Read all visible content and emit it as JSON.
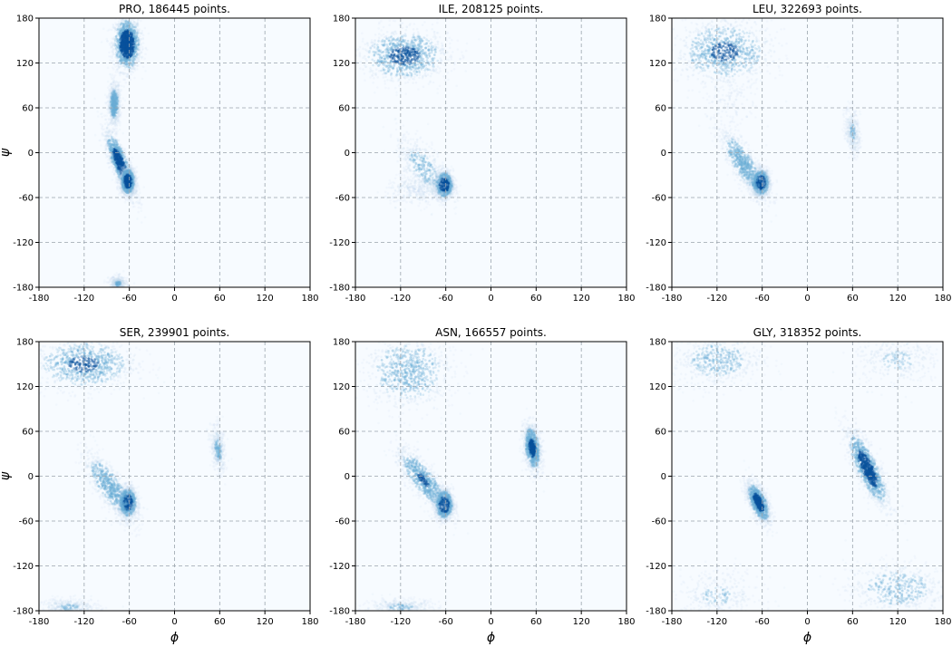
{
  "chart_data": [
    {
      "type": "heatmap",
      "title": "PRO, 186445 points.",
      "xlabel": "",
      "ylabel": "ψ",
      "xlim": [
        -180,
        180
      ],
      "ylim": [
        -180,
        180
      ],
      "xticks": [
        -180,
        -120,
        -60,
        0,
        60,
        120,
        180
      ],
      "yticks": [
        -180,
        -120,
        -60,
        0,
        60,
        120,
        180
      ],
      "grid": true,
      "density_clusters": [
        {
          "phi": -63,
          "psi": 145,
          "sd_phi": 9,
          "sd_psi": 18,
          "tilt": 0,
          "weight": 1.0
        },
        {
          "phi": -72,
          "psi": -15,
          "sd_phi": 10,
          "sd_psi": 22,
          "tilt": 0.8,
          "weight": 0.9
        },
        {
          "phi": -62,
          "psi": -38,
          "sd_phi": 5,
          "sd_psi": 9,
          "tilt": 0,
          "weight": 1.0
        },
        {
          "phi": -80,
          "psi": 65,
          "sd_phi": 4,
          "sd_psi": 14,
          "tilt": 0,
          "weight": 0.5
        },
        {
          "phi": -75,
          "psi": -175,
          "sd_phi": 6,
          "sd_psi": 5,
          "tilt": 0,
          "weight": 0.25
        }
      ]
    },
    {
      "type": "heatmap",
      "title": "ILE, 208125 points.",
      "xlabel": "",
      "ylabel": "",
      "xlim": [
        -180,
        180
      ],
      "ylim": [
        -180,
        180
      ],
      "xticks": [
        -180,
        -120,
        -60,
        0,
        60,
        120,
        180
      ],
      "yticks": [
        -180,
        -120,
        -60,
        0,
        60,
        120,
        180
      ],
      "grid": true,
      "density_clusters": [
        {
          "phi": -115,
          "psi": 130,
          "sd_phi": 30,
          "sd_psi": 18,
          "tilt": 0,
          "weight": 0.7
        },
        {
          "phi": -62,
          "psi": -43,
          "sd_phi": 6,
          "sd_psi": 9,
          "tilt": 0,
          "weight": 1.0
        },
        {
          "phi": -90,
          "psi": -20,
          "sd_phi": 18,
          "sd_psi": 22,
          "tilt": 0.6,
          "weight": 0.35
        },
        {
          "phi": -100,
          "psi": -50,
          "sd_phi": 20,
          "sd_psi": 10,
          "tilt": 0,
          "weight": 0.2
        }
      ]
    },
    {
      "type": "heatmap",
      "title": "LEU, 322693 points.",
      "xlabel": "",
      "ylabel": "",
      "xlim": [
        -180,
        180
      ],
      "ylim": [
        -180,
        180
      ],
      "xticks": [
        -180,
        -120,
        -60,
        0,
        60,
        120,
        180
      ],
      "yticks": [
        -180,
        -120,
        -60,
        0,
        60,
        120,
        180
      ],
      "grid": true,
      "density_clusters": [
        {
          "phi": -110,
          "psi": 135,
          "sd_phi": 32,
          "sd_psi": 22,
          "tilt": 0,
          "weight": 0.65
        },
        {
          "phi": -62,
          "psi": -40,
          "sd_phi": 6,
          "sd_psi": 9,
          "tilt": 0,
          "weight": 1.0
        },
        {
          "phi": -85,
          "psi": -15,
          "sd_phi": 16,
          "sd_psi": 24,
          "tilt": 0.8,
          "weight": 0.55
        },
        {
          "phi": 60,
          "psi": 28,
          "sd_phi": 5,
          "sd_psi": 16,
          "tilt": 0.3,
          "weight": 0.25
        },
        {
          "phi": -100,
          "psi": 70,
          "sd_phi": 20,
          "sd_psi": 20,
          "tilt": 0,
          "weight": 0.1
        }
      ]
    },
    {
      "type": "heatmap",
      "title": "SER, 239901 points.",
      "xlabel": "ϕ",
      "ylabel": "ψ",
      "xlim": [
        -180,
        180
      ],
      "ylim": [
        -180,
        180
      ],
      "xticks": [
        -180,
        -120,
        -60,
        0,
        60,
        120,
        180
      ],
      "yticks": [
        -180,
        -120,
        -60,
        0,
        60,
        120,
        180
      ],
      "grid": true,
      "density_clusters": [
        {
          "phi": -120,
          "psi": 150,
          "sd_phi": 35,
          "sd_psi": 18,
          "tilt": 0,
          "weight": 0.65
        },
        {
          "phi": -62,
          "psi": -35,
          "sd_phi": 6,
          "sd_psi": 10,
          "tilt": 0,
          "weight": 1.0
        },
        {
          "phi": -85,
          "psi": -15,
          "sd_phi": 18,
          "sd_psi": 24,
          "tilt": 0.8,
          "weight": 0.55
        },
        {
          "phi": 58,
          "psi": 35,
          "sd_phi": 5,
          "sd_psi": 16,
          "tilt": 0.3,
          "weight": 0.3
        },
        {
          "phi": -140,
          "psi": -175,
          "sd_phi": 20,
          "sd_psi": 6,
          "tilt": 0,
          "weight": 0.25
        }
      ]
    },
    {
      "type": "heatmap",
      "title": "ASN, 166557 points.",
      "xlabel": "ϕ",
      "ylabel": "",
      "xlim": [
        -180,
        180
      ],
      "ylim": [
        -180,
        180
      ],
      "xticks": [
        -180,
        -120,
        -60,
        0,
        60,
        120,
        180
      ],
      "yticks": [
        -180,
        -120,
        -60,
        0,
        60,
        120,
        180
      ],
      "grid": true,
      "density_clusters": [
        {
          "phi": -110,
          "psi": 140,
          "sd_phi": 30,
          "sd_psi": 25,
          "tilt": 0,
          "weight": 0.55
        },
        {
          "phi": -62,
          "psi": -38,
          "sd_phi": 6,
          "sd_psi": 10,
          "tilt": 0,
          "weight": 1.0
        },
        {
          "phi": -90,
          "psi": -5,
          "sd_phi": 18,
          "sd_psi": 22,
          "tilt": 0.8,
          "weight": 0.6
        },
        {
          "phi": 55,
          "psi": 38,
          "sd_phi": 6,
          "sd_psi": 16,
          "tilt": 0.3,
          "weight": 0.75
        },
        {
          "phi": -120,
          "psi": -175,
          "sd_phi": 25,
          "sd_psi": 6,
          "tilt": 0,
          "weight": 0.25
        }
      ]
    },
    {
      "type": "heatmap",
      "title": "GLY, 318352 points.",
      "xlabel": "ϕ",
      "ylabel": "",
      "xlim": [
        -180,
        180
      ],
      "ylim": [
        -180,
        180
      ],
      "xticks": [
        -180,
        -120,
        -60,
        0,
        60,
        120,
        180
      ],
      "yticks": [
        -180,
        -120,
        -60,
        0,
        60,
        120,
        180
      ],
      "grid": true,
      "density_clusters": [
        {
          "phi": 80,
          "psi": 10,
          "sd_phi": 14,
          "sd_psi": 26,
          "tilt": 0.8,
          "weight": 0.85
        },
        {
          "phi": -65,
          "psi": -35,
          "sd_phi": 8,
          "sd_psi": 14,
          "tilt": 0.6,
          "weight": 0.8
        },
        {
          "phi": -120,
          "psi": 155,
          "sd_phi": 30,
          "sd_psi": 18,
          "tilt": 0,
          "weight": 0.4
        },
        {
          "phi": 120,
          "psi": -150,
          "sd_phi": 35,
          "sd_psi": 18,
          "tilt": 0,
          "weight": 0.4
        },
        {
          "phi": 120,
          "psi": 155,
          "sd_phi": 30,
          "sd_psi": 18,
          "tilt": 0,
          "weight": 0.25
        },
        {
          "phi": -120,
          "psi": -160,
          "sd_phi": 30,
          "sd_psi": 18,
          "tilt": 0,
          "weight": 0.25
        }
      ]
    }
  ],
  "colors": {
    "background": "#f7fbff",
    "light": "#c6dbef",
    "mid": "#6baed6",
    "dark": "#08519c",
    "grid": "#9aa4ad"
  }
}
